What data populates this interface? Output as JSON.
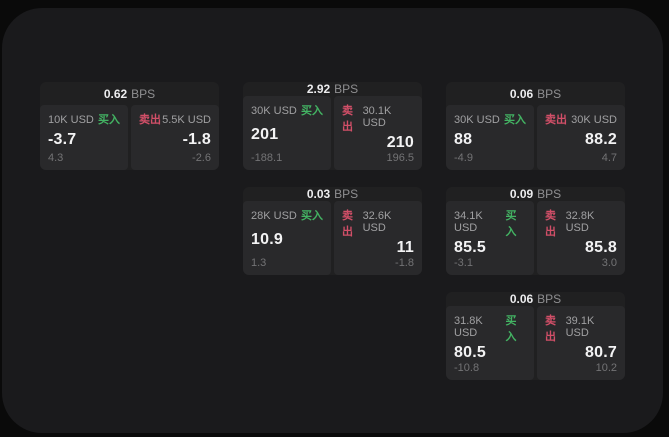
{
  "colors": {
    "buy-green": "#43b363",
    "sell-red": "#d24f68",
    "outer-bg": "#0a0a0a",
    "panel-bg": "#1a1a1c",
    "card-bg": "#202021",
    "subpanel-bg": "#29292b"
  },
  "labels": {
    "bps": "BPS",
    "buy": "买入",
    "sell": "卖出"
  },
  "cards": [
    {
      "bps": "0.62",
      "row": 1,
      "col": 1,
      "buy": {
        "size": "10K USD",
        "price": "-3.7",
        "delta": "4.3"
      },
      "sell": {
        "size": "5.5K USD",
        "price": "-1.8",
        "delta": "-2.6"
      }
    },
    {
      "bps": "2.92",
      "row": 1,
      "col": 2,
      "buy": {
        "size": "30K USD",
        "price": "201",
        "delta": "-188.1"
      },
      "sell": {
        "size": "30.1K USD",
        "price": "210",
        "delta": "196.5"
      }
    },
    {
      "bps": "0.06",
      "row": 1,
      "col": 3,
      "buy": {
        "size": "30K USD",
        "price": "88",
        "delta": "-4.9"
      },
      "sell": {
        "size": "30K USD",
        "price": "88.2",
        "delta": "4.7"
      }
    },
    {
      "bps": "0.03",
      "row": 2,
      "col": 2,
      "buy": {
        "size": "28K USD",
        "price": "10.9",
        "delta": "1.3"
      },
      "sell": {
        "size": "32.6K USD",
        "price": "11",
        "delta": "-1.8"
      }
    },
    {
      "bps": "0.09",
      "row": 2,
      "col": 3,
      "buy": {
        "size": "34.1K USD",
        "price": "85.5",
        "delta": "-3.1"
      },
      "sell": {
        "size": "32.8K USD",
        "price": "85.8",
        "delta": "3.0"
      }
    },
    {
      "bps": "0.06",
      "row": 3,
      "col": 3,
      "buy": {
        "size": "31.8K USD",
        "price": "80.5",
        "delta": "-10.8"
      },
      "sell": {
        "size": "39.1K USD",
        "price": "80.7",
        "delta": "10.2"
      }
    }
  ]
}
